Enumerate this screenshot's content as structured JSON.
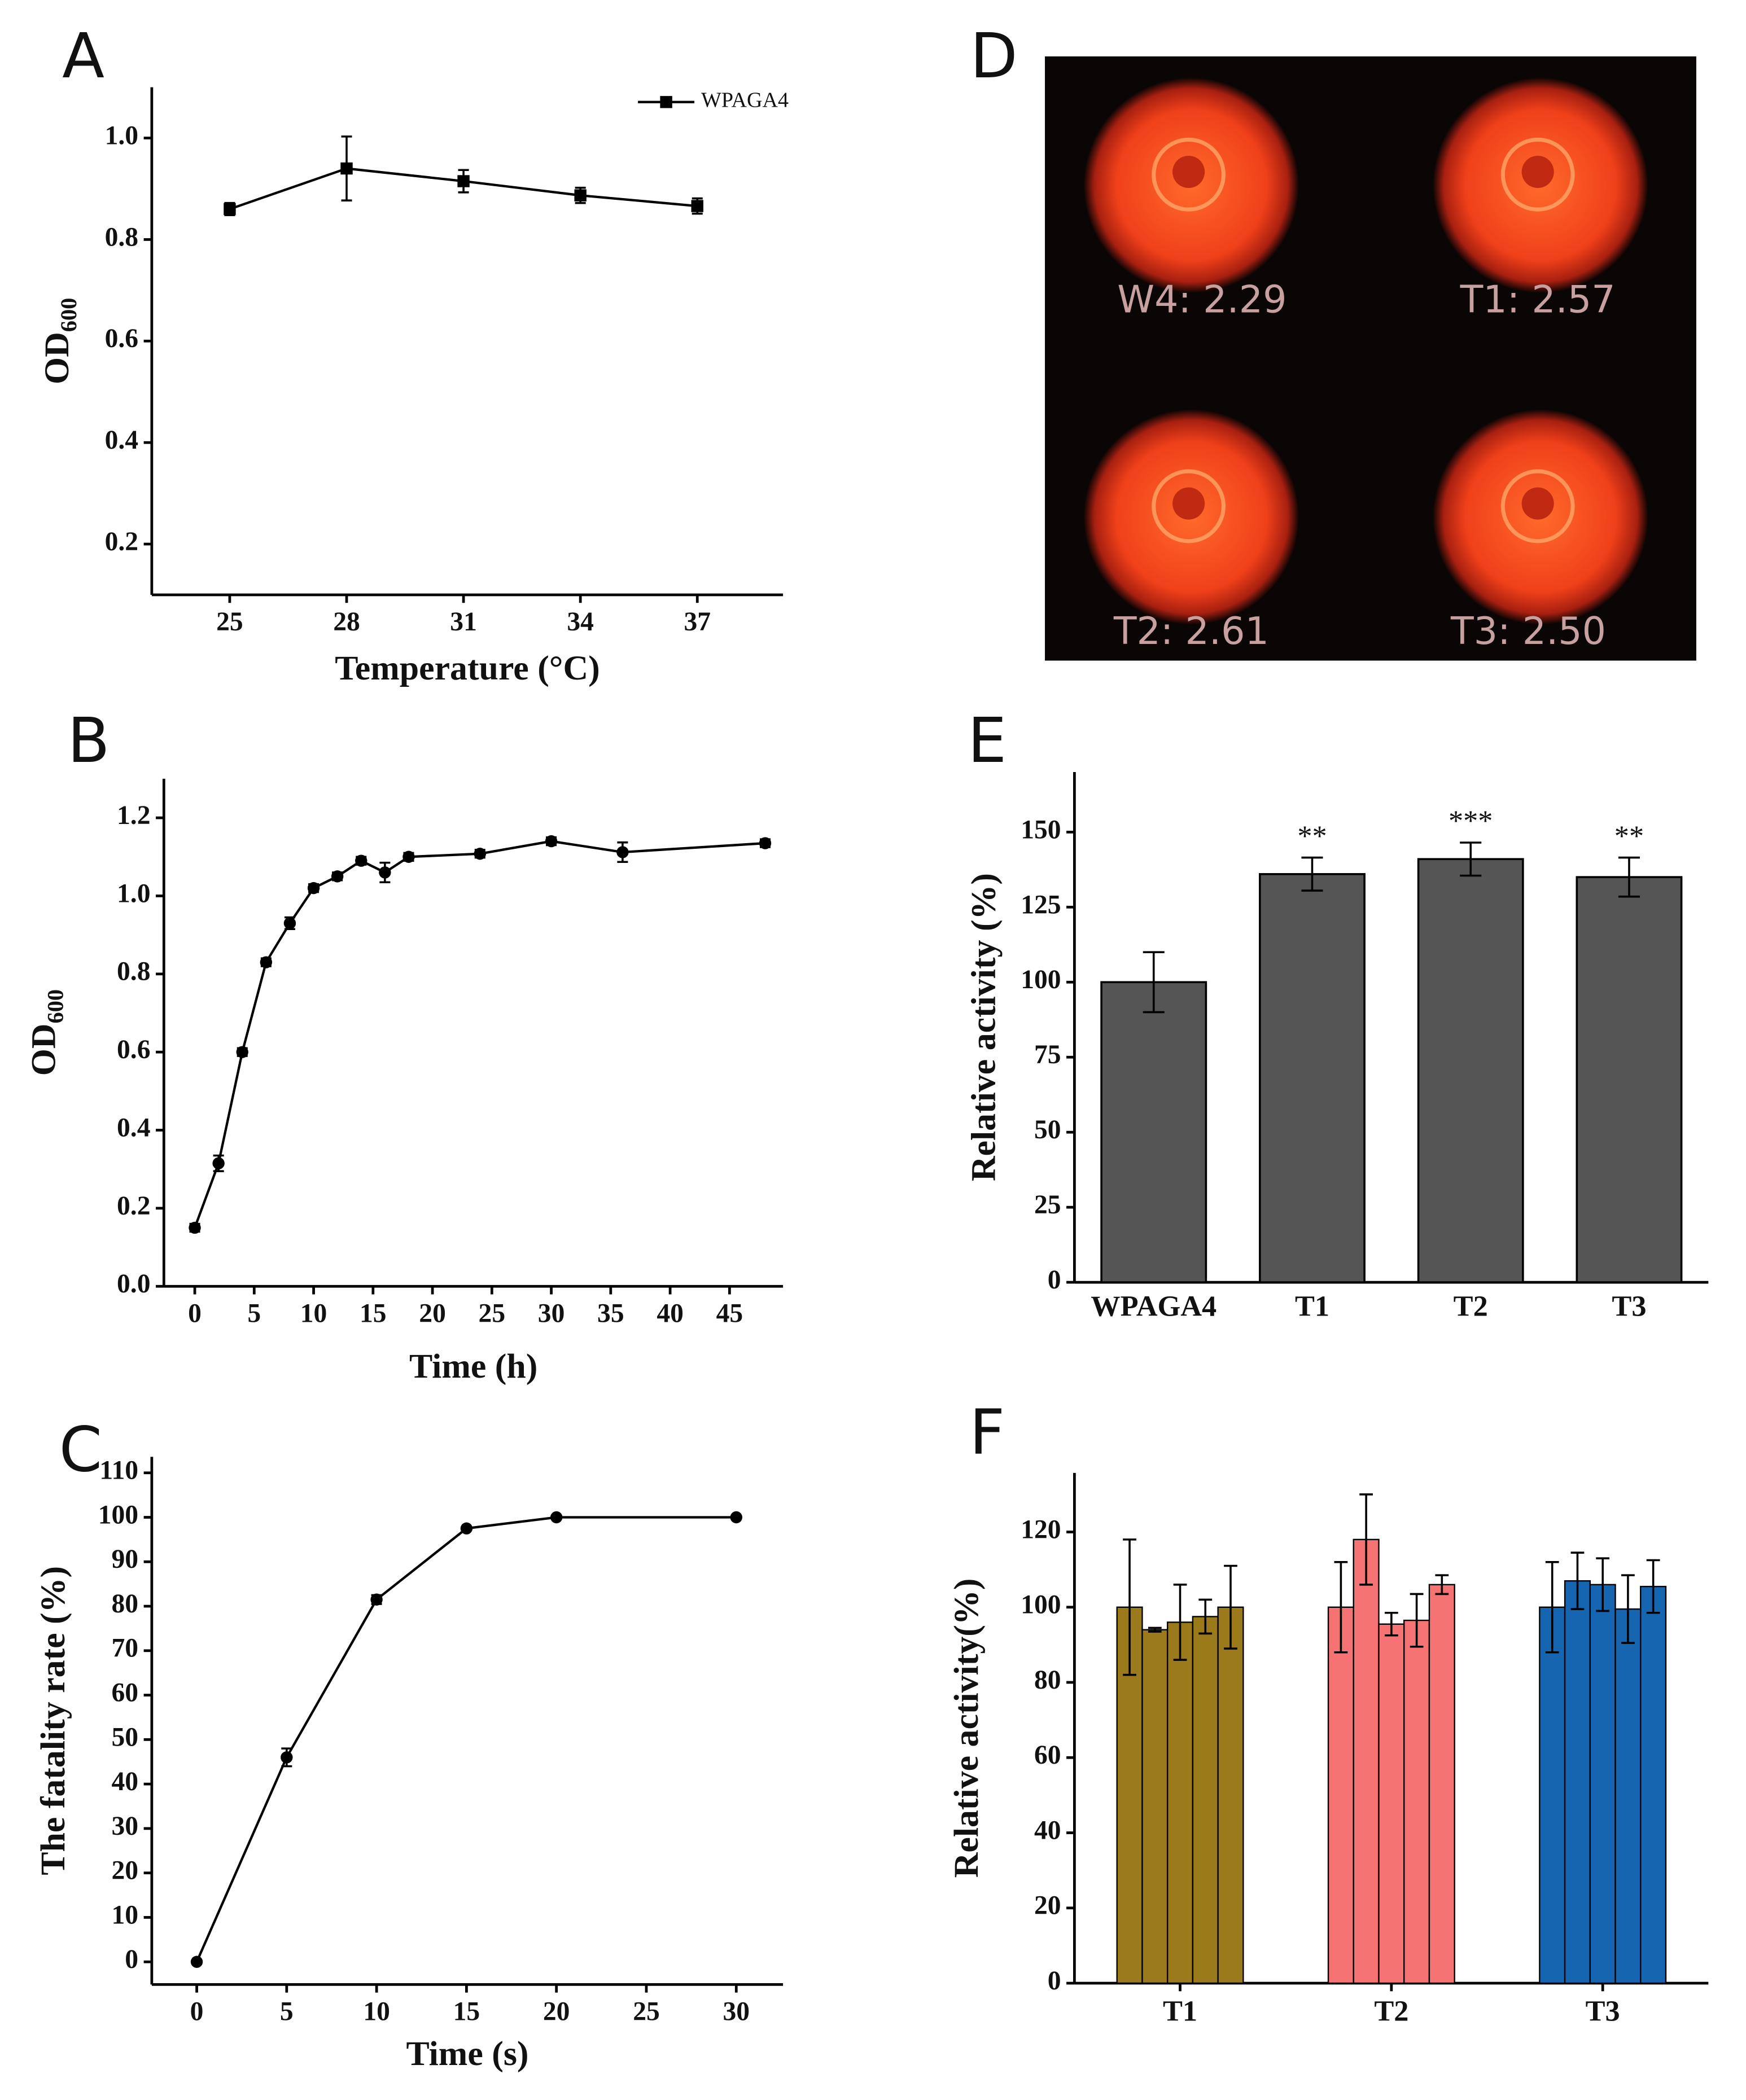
{
  "chart_data": [
    {
      "type": "line",
      "panel": "A",
      "xlabel": "Temperature (°C)",
      "ylabel": "OD",
      "ylabel_sub": "600",
      "x": [
        25,
        28,
        31,
        34,
        37
      ],
      "xlim": [
        23,
        39.2
      ],
      "xticks": [
        25,
        28,
        31,
        34,
        37
      ],
      "ylim": [
        0.1,
        1.1
      ],
      "yticks": [
        0.2,
        0.4,
        0.6,
        0.8,
        {
          "value": 1,
          "label": "1.0"
        }
      ],
      "marker": "square",
      "legend": "upper right",
      "series": [
        {
          "name": "WPAGA4",
          "color": "#000000",
          "values": [
            0.86,
            0.94,
            0.915,
            0.887,
            0.866
          ],
          "errors": [
            0.012,
            0.063,
            0.022,
            0.015,
            0.015
          ]
        }
      ]
    },
    {
      "type": "line",
      "panel": "B",
      "xlabel": "Time (h)",
      "ylabel": "OD",
      "ylabel_sub": "600",
      "x": [
        0,
        2,
        4,
        6,
        8,
        10,
        12,
        14,
        16,
        18,
        24,
        30,
        36,
        48
      ],
      "xlim": [
        -2.6,
        49.5
      ],
      "xticks": [
        0,
        5,
        10,
        15,
        20,
        25,
        30,
        35,
        40,
        45
      ],
      "ylim": [
        0,
        1.3
      ],
      "yticks": [
        {
          "value": 0,
          "label": "0.0"
        },
        0.2,
        0.4,
        0.6,
        0.8,
        {
          "value": 1,
          "label": "1.0"
        },
        1.2
      ],
      "marker": "circle",
      "color": "#000000",
      "values": [
        0.15,
        0.315,
        0.6,
        0.83,
        0.93,
        1.02,
        1.05,
        1.09,
        1.06,
        1.1,
        1.108,
        1.14,
        1.112,
        1.135
      ],
      "errors": [
        0.01,
        0.02,
        0.01,
        0.01,
        0.015,
        0.01,
        0.01,
        0.01,
        0.025,
        0.01,
        0.01,
        0.01,
        0.025,
        0.01
      ]
    },
    {
      "type": "line",
      "panel": "C",
      "xlabel": "Time (s)",
      "ylabel": "The fatality rate (%)",
      "x": [
        0,
        5,
        10,
        15,
        20,
        30
      ],
      "xlim": [
        -2.5,
        32.6
      ],
      "xticks": [
        0,
        5,
        10,
        15,
        20,
        25,
        30
      ],
      "ylim": [
        -5.1,
        113.6
      ],
      "yticks": [
        0,
        10,
        20,
        30,
        40,
        50,
        60,
        70,
        80,
        90,
        100,
        110
      ],
      "marker": "circle",
      "color": "#000000",
      "values": [
        0,
        46,
        81.5,
        97.5,
        100,
        100
      ],
      "errors": [
        0,
        2,
        1,
        0,
        0,
        0
      ]
    },
    {
      "type": "image",
      "panel": "D",
      "labels": [
        "W4: 2.29",
        "T1: 2.57",
        "T2: 2.61",
        "T3: 2.50"
      ]
    },
    {
      "type": "bar",
      "panel": "E",
      "ylabel": "Relative activity (%)",
      "categories": [
        "WPAGA4",
        "T1",
        "T2",
        "T3"
      ],
      "values": [
        100,
        136,
        141,
        135
      ],
      "errors": [
        10,
        5.5,
        5.5,
        6.5
      ],
      "annotations": [
        null,
        "**",
        "***",
        "**"
      ],
      "color": "#555555",
      "ylim": [
        0,
        170
      ],
      "yticks": [
        0,
        25,
        50,
        75,
        100,
        125,
        150
      ]
    },
    {
      "type": "grouped_bar",
      "panel": "F",
      "ylabel": "Relative activity(%)",
      "categories": [
        "T1",
        "T2",
        "T3"
      ],
      "colors": [
        "#9a7a1b",
        "#f57373",
        "#1565b0"
      ],
      "values": [
        [
          100,
          94,
          96,
          97.5,
          100
        ],
        [
          100,
          118,
          95.5,
          96.5,
          106
        ],
        [
          100,
          107,
          106,
          99.5,
          105.5
        ]
      ],
      "errors": [
        [
          18,
          0.5,
          10,
          4.5,
          11
        ],
        [
          12,
          12,
          3,
          7,
          2.5
        ],
        [
          12,
          7.5,
          7,
          9,
          7
        ]
      ],
      "ylim": [
        0,
        135.7
      ],
      "yticks": [
        0,
        20,
        40,
        60,
        80,
        100,
        120
      ]
    }
  ]
}
